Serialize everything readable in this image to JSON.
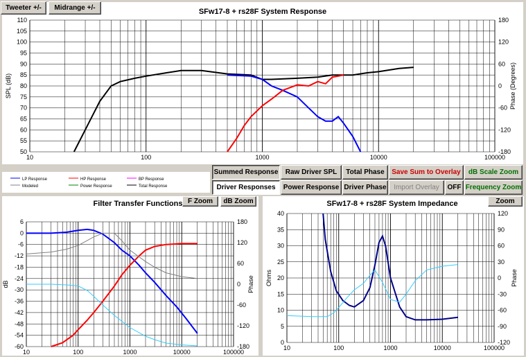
{
  "toolbar": {
    "tweeter_label": "Tweeter +/-",
    "midrange_label": "Midrange  +/-"
  },
  "colors": {
    "black": "#000000",
    "red": "#ff0000",
    "blue": "#0000ff",
    "cyan": "#33ccff",
    "navy": "#00008b",
    "gray": "#808080",
    "magenta": "#ff00ff",
    "green": "#008000"
  },
  "main_chart": {
    "title": "SFw17-8 + rs28F    System Response",
    "ylabel": "SPL (dB)",
    "y2label": "Phase (Degrees)",
    "yticks": [
      "110",
      "105",
      "100",
      "95",
      "90",
      "85",
      "80",
      "75",
      "70",
      "65",
      "60",
      "55",
      "50"
    ],
    "y2ticks": [
      "180",
      "120",
      "60",
      "0",
      "-60",
      "-120",
      "-180"
    ],
    "xticks": [
      "10",
      "100",
      "1000",
      "10000",
      "100000"
    ]
  },
  "legend": [
    {
      "label": "LP Response",
      "color": "blue"
    },
    {
      "label": "HP Response",
      "color": "red"
    },
    {
      "label": "BP Response",
      "color": "magenta"
    },
    {
      "label": "Modeled",
      "color": "gray"
    },
    {
      "label": "Power Response",
      "color": "green"
    },
    {
      "label": "Total Response",
      "color": "black"
    }
  ],
  "buttons": {
    "summed_response": "Summed Response",
    "raw_driver_spl": "Raw Driver SPL",
    "total_phase": "Total Phase",
    "save_sum": "Save Sum to Overlay",
    "db_scale_zoom": "dB Scale Zoom",
    "driver_responses": "Driver Responses",
    "power_response": "Power Response",
    "driver_phase": "Driver Phase",
    "import_overlay": "Import Overlay",
    "off": "OFF",
    "frequency_zoom": "Frequency Zoom",
    "f_zoom": "F Zoom",
    "db_zoom": "dB Zoom",
    "zoom": "Zoom"
  },
  "filter_chart": {
    "title": "Filter Transfer Functions",
    "ylabel": "dB",
    "y2label": "Phase",
    "yticks": [
      "6",
      "0",
      "-6",
      "-12",
      "-18",
      "-24",
      "-30",
      "-36",
      "-42",
      "-48",
      "-54",
      "-60"
    ],
    "y2ticks": [
      "180",
      "120",
      "60",
      "0",
      "-60",
      "-120",
      "-180"
    ],
    "xticks": [
      "10",
      "100",
      "1000",
      "10000",
      "100000"
    ]
  },
  "impedance_chart": {
    "title": "SFw17-8 + rs28F    System Impedance",
    "ylabel": "Ohms",
    "y2label": "Phase",
    "yticks": [
      "40",
      "35",
      "30",
      "25",
      "20",
      "15",
      "10",
      "5",
      "0"
    ],
    "y2ticks": [
      "120",
      "90",
      "60",
      "30",
      "0",
      "-30",
      "-60",
      "-90",
      "-120"
    ],
    "xticks": [
      "10",
      "100",
      "1000",
      "10000",
      "100000"
    ]
  },
  "chart_data": [
    {
      "type": "line",
      "title": "SFw17-8 + rs28F    System Response",
      "xscale": "log",
      "xlim": [
        10,
        100000
      ],
      "ylabel": "SPL (dB)",
      "ylim": [
        50,
        110
      ],
      "y2label": "Phase (Degrees)",
      "y2lim": [
        -180,
        180
      ],
      "series": [
        {
          "name": "Total Response",
          "color": "black",
          "axis": "y",
          "x": [
            24,
            30,
            40,
            50,
            60,
            80,
            100,
            150,
            200,
            300,
            500,
            800,
            1000,
            1200,
            2000,
            3000,
            4000,
            6000,
            8000,
            10000,
            15000,
            20000
          ],
          "y": [
            50,
            60,
            73,
            80,
            82,
            83.5,
            84.5,
            86,
            87,
            87,
            85.5,
            85,
            83,
            83,
            83.5,
            84,
            85,
            85,
            86,
            86.5,
            88,
            88.5
          ]
        },
        {
          "name": "LP Response",
          "color": "blue",
          "axis": "y",
          "x": [
            500,
            800,
            1000,
            1200,
            1500,
            2000,
            2500,
            3000,
            3500,
            4000,
            4500,
            5000,
            6000,
            7000
          ],
          "y": [
            85,
            84.5,
            83,
            80,
            78,
            75,
            70,
            66,
            64,
            64,
            66,
            63,
            57,
            50
          ]
        },
        {
          "name": "HP Response",
          "color": "red",
          "axis": "y",
          "x": [
            500,
            600,
            700,
            800,
            1000,
            1200,
            1500,
            2000,
            2500,
            3000,
            3500,
            4000,
            4500,
            5000
          ],
          "y": [
            50,
            56,
            62,
            66,
            71,
            74,
            78,
            80.5,
            80,
            82,
            81,
            84,
            84.5,
            85
          ]
        }
      ]
    },
    {
      "type": "line",
      "title": "Filter Transfer Functions",
      "xscale": "log",
      "xlim": [
        10,
        100000
      ],
      "ylabel": "dB",
      "ylim": [
        -60,
        6
      ],
      "y2label": "Phase",
      "y2lim": [
        -180,
        180
      ],
      "series": [
        {
          "name": "LP",
          "color": "blue",
          "axis": "y",
          "x": [
            10,
            30,
            60,
            100,
            150,
            200,
            300,
            500,
            700,
            1000,
            1500,
            2000,
            3000,
            5000,
            8000,
            12000,
            20000
          ],
          "y": [
            0,
            0,
            0.5,
            1.5,
            2,
            1.5,
            -0.5,
            -5,
            -9,
            -12,
            -17,
            -21,
            -26,
            -33,
            -39,
            -45,
            -53
          ]
        },
        {
          "name": "HP",
          "color": "red",
          "axis": "y",
          "x": [
            30,
            50,
            80,
            100,
            150,
            200,
            300,
            500,
            700,
            1000,
            1500,
            2000,
            3000,
            5000,
            10000,
            20000
          ],
          "y": [
            -62,
            -58,
            -54,
            -51,
            -46,
            -42,
            -36,
            -28,
            -22,
            -17,
            -12,
            -9,
            -7,
            -6,
            -5.5,
            -5.5
          ]
        },
        {
          "name": "Modeled",
          "color": "gray",
          "axis": "y",
          "x": [
            10,
            30,
            60,
            100,
            200,
            300,
            500,
            700,
            1000,
            2000,
            3000,
            5000,
            10000,
            20000
          ],
          "y": [
            -11,
            -10,
            -8.5,
            -6.5,
            -2,
            0,
            0,
            -4,
            -9,
            -15,
            -18,
            -21,
            -23,
            -24
          ]
        },
        {
          "name": "Phase",
          "color": "cyan",
          "axis": "y2",
          "x": [
            10,
            30,
            60,
            100,
            150,
            200,
            300,
            500,
            1000,
            2000,
            3000,
            5000,
            10000,
            20000
          ],
          "y": [
            0,
            0,
            -2,
            -5,
            -18,
            -35,
            -60,
            -90,
            -125,
            -150,
            -160,
            -170,
            -175,
            -178
          ]
        }
      ]
    },
    {
      "type": "line",
      "title": "SFw17-8 + rs28F    System Impedance",
      "xscale": "log",
      "xlim": [
        10,
        100000
      ],
      "ylabel": "Ohms",
      "ylim": [
        0,
        40
      ],
      "y2label": "Phase",
      "y2lim": [
        -120,
        120
      ],
      "series": [
        {
          "name": "Impedance",
          "color": "navy",
          "axis": "y",
          "x": [
            50,
            55,
            70,
            90,
            120,
            160,
            200,
            300,
            400,
            500,
            600,
            700,
            800,
            1000,
            1500,
            2000,
            3000,
            5000,
            10000,
            20000
          ],
          "y": [
            40,
            32,
            22,
            16,
            13,
            11.5,
            11,
            13,
            17,
            24,
            31,
            33,
            30,
            20,
            11,
            8,
            7,
            7,
            7.2,
            7.8
          ]
        },
        {
          "name": "Phase",
          "color": "cyan",
          "axis": "y2",
          "x": [
            10,
            30,
            60,
            80,
            100,
            150,
            200,
            300,
            400,
            500,
            700,
            1000,
            1500,
            2000,
            3000,
            5000,
            10000,
            20000
          ],
          "y": [
            -70,
            -72,
            -72,
            -65,
            -55,
            -35,
            -22,
            -10,
            5,
            15,
            -8,
            -40,
            -45,
            -30,
            -5,
            15,
            22,
            25
          ]
        }
      ]
    }
  ]
}
